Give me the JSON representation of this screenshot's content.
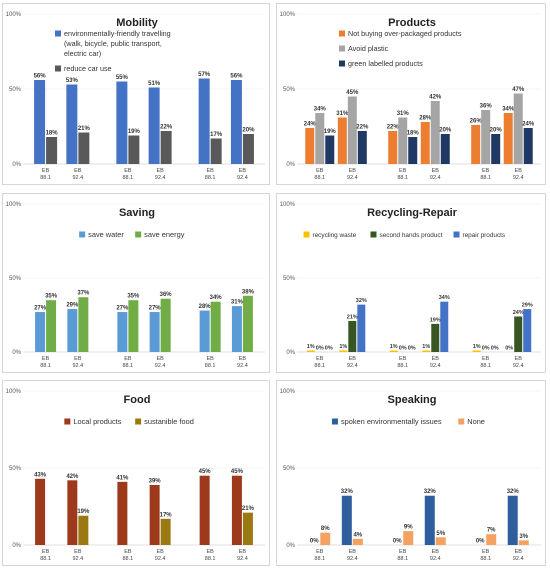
{
  "chart_data": [
    {
      "type": "bar",
      "title": "Mobility",
      "ylim": [
        0,
        100
      ],
      "yticks": [
        "0%",
        "50%",
        "100%"
      ],
      "categories": [
        "EB 88.1",
        "EB 92.4",
        "EB 88.1",
        "EB 92.4",
        "EB 88.1",
        "EB 92.4"
      ],
      "series": [
        {
          "name": "environmentally-friendly travelling (walk, bicycle, public transport, electric car)",
          "color": "#4472c4",
          "values": [
            56,
            53,
            55,
            51,
            57,
            56
          ],
          "labels": [
            "56%",
            "53%",
            "55%",
            "51%",
            "57%",
            "56%"
          ]
        },
        {
          "name": "reduce car use",
          "color": "#595959",
          "values": [
            18,
            21,
            19,
            22,
            17,
            20
          ],
          "labels": [
            "18%",
            "21%",
            "19%",
            "22%",
            "17%",
            "20%"
          ]
        }
      ],
      "legend": "top-right"
    },
    {
      "type": "bar",
      "title": "Products",
      "ylim": [
        0,
        100
      ],
      "yticks": [
        "0%",
        "50%",
        "100%"
      ],
      "categories": [
        "EB 88.1",
        "EB 92.4",
        "EB 88.1",
        "EB 92.4",
        "EB 88.1",
        "EB 92.4"
      ],
      "series": [
        {
          "name": "Not buying over-packaged products",
          "color": "#ed7d31",
          "values": [
            24,
            31,
            22,
            28,
            26,
            34
          ],
          "labels": [
            "24%",
            "31%",
            "22%",
            "28%",
            "26%",
            "34%"
          ]
        },
        {
          "name": "Avoid plastic",
          "color": "#a5a5a5",
          "values": [
            34,
            45,
            31,
            42,
            36,
            47
          ],
          "labels": [
            "34%",
            "45%",
            "31%",
            "42%",
            "36%",
            "47%"
          ]
        },
        {
          "name": "green labelled products",
          "color": "#203864",
          "values": [
            19,
            22,
            18,
            20,
            20,
            24
          ],
          "labels": [
            "19%",
            "22%",
            "18%",
            "20%",
            "20%",
            "24%"
          ]
        }
      ],
      "legend": "top-right"
    },
    {
      "type": "bar",
      "title": "Saving",
      "ylim": [
        0,
        100
      ],
      "yticks": [
        "0%",
        "50%",
        "100%"
      ],
      "categories": [
        "EB 88.1",
        "EB 92.4",
        "EB 88.1",
        "EB 92.4",
        "EB 88.1",
        "EB 92.4"
      ],
      "series": [
        {
          "name": "save water",
          "color": "#5b9bd5",
          "values": [
            27,
            29,
            27,
            27,
            28,
            31
          ],
          "labels": [
            "27%",
            "29%",
            "27%",
            "27%",
            "28%",
            "31%"
          ]
        },
        {
          "name": "save energy",
          "color": "#70ad47",
          "values": [
            35,
            37,
            35,
            36,
            34,
            38
          ],
          "labels": [
            "35%",
            "37%",
            "35%",
            "36%",
            "34%",
            "38%"
          ]
        }
      ],
      "legend": "top"
    },
    {
      "type": "bar",
      "title": "Recycling-Repair",
      "ylim": [
        0,
        100
      ],
      "yticks": [
        "0%",
        "50%",
        "100%"
      ],
      "categories": [
        "EB 88.1",
        "EB 92.4",
        "EB 88.1",
        "EB 92.4",
        "EB 88.1",
        "EB 92.4"
      ],
      "series": [
        {
          "name": "recycling waste",
          "color": "#ffc000",
          "values": [
            1,
            1,
            1,
            1,
            1,
            0
          ],
          "labels": [
            "1%",
            "1%",
            "1%",
            "1%",
            "1%",
            "0%"
          ]
        },
        {
          "name": "second hands product",
          "color": "#375623",
          "values": [
            0,
            21,
            0,
            19,
            0,
            24
          ],
          "labels": [
            "0%",
            "21%",
            "0%",
            "19%",
            "0%",
            "24%"
          ]
        },
        {
          "name": "repair products",
          "color": "#4472c4",
          "values": [
            0,
            32,
            0,
            34,
            0,
            29
          ],
          "labels": [
            "0%",
            "32%",
            "0%",
            "34%",
            "0%",
            "29%"
          ]
        }
      ],
      "legend": "top"
    },
    {
      "type": "bar",
      "title": "Food",
      "ylim": [
        0,
        100
      ],
      "yticks": [
        "0%",
        "50%",
        "100%"
      ],
      "categories": [
        "EB 88.1",
        "EB 92.4",
        "EB 88.1",
        "EB 92.4",
        "EB 88.1",
        "EB 92.4"
      ],
      "series": [
        {
          "name": "Local products",
          "color": "#9e3a1c",
          "values": [
            43,
            42,
            41,
            39,
            45,
            45
          ],
          "labels": [
            "43%",
            "42%",
            "41%",
            "39%",
            "45%",
            "45%"
          ]
        },
        {
          "name": "sustanible food",
          "color": "#9a7812",
          "values": [
            0,
            19,
            0,
            17,
            0,
            21
          ],
          "labels": [
            "",
            "19%",
            "",
            "17%",
            "",
            "21%"
          ]
        }
      ],
      "legend": "top"
    },
    {
      "type": "bar",
      "title": "Speaking",
      "ylim": [
        0,
        100
      ],
      "yticks": [
        "0%",
        "50%",
        "100%"
      ],
      "categories": [
        "EB 88.1",
        "EB 92.4",
        "EB 88.1",
        "EB 92.4",
        "EB 88.1",
        "EB 92.4"
      ],
      "series": [
        {
          "name": "spoken environmentally issues",
          "color": "#2e5e9e",
          "values": [
            0,
            32,
            0,
            32,
            0,
            32
          ],
          "labels": [
            "0%",
            "32%",
            "0%",
            "32%",
            "0%",
            "32%"
          ]
        },
        {
          "name": "None",
          "color": "#f4a261",
          "values": [
            8,
            4,
            9,
            5,
            7,
            3
          ],
          "labels": [
            "8%",
            "4%",
            "9%",
            "5%",
            "7%",
            "3%"
          ]
        }
      ],
      "legend": "top"
    }
  ]
}
